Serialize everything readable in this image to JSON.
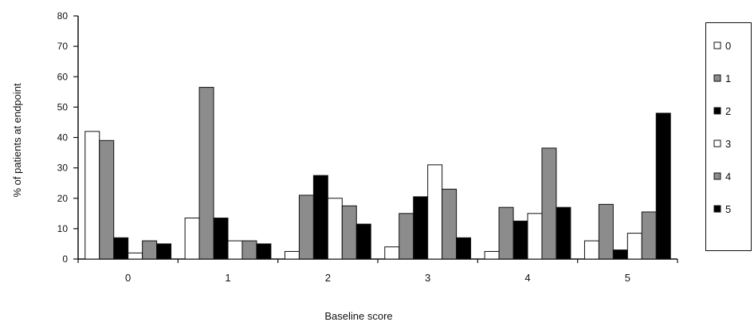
{
  "chart_data": {
    "type": "bar",
    "title": "",
    "xlabel": "Baseline score",
    "ylabel": "% of patients at endpoint",
    "categories": [
      "0",
      "1",
      "2",
      "3",
      "4",
      "5"
    ],
    "ylim": [
      0,
      80
    ],
    "yticks": [
      "0",
      "10",
      "20",
      "30",
      "40",
      "50",
      "60",
      "70",
      "80"
    ],
    "grid": false,
    "legend_position": "right",
    "series": [
      {
        "name": "0",
        "color": "#ffffff",
        "values": [
          42,
          13.5,
          2.5,
          4,
          2.5,
          6
        ]
      },
      {
        "name": "1",
        "color": "#8c8c8c",
        "values": [
          39,
          56.5,
          21,
          15,
          17,
          18
        ]
      },
      {
        "name": "2",
        "color": "#000000",
        "values": [
          7,
          13.5,
          27.5,
          20.5,
          12.5,
          3
        ]
      },
      {
        "name": "3",
        "color": "#ffffff",
        "values": [
          2,
          6,
          20,
          31,
          15,
          8.5
        ]
      },
      {
        "name": "4",
        "color": "#8c8c8c",
        "values": [
          6,
          6,
          17.5,
          23,
          36.5,
          15.5
        ]
      },
      {
        "name": "5",
        "color": "#000000",
        "values": [
          5,
          5,
          11.5,
          7,
          17,
          48
        ]
      }
    ]
  }
}
